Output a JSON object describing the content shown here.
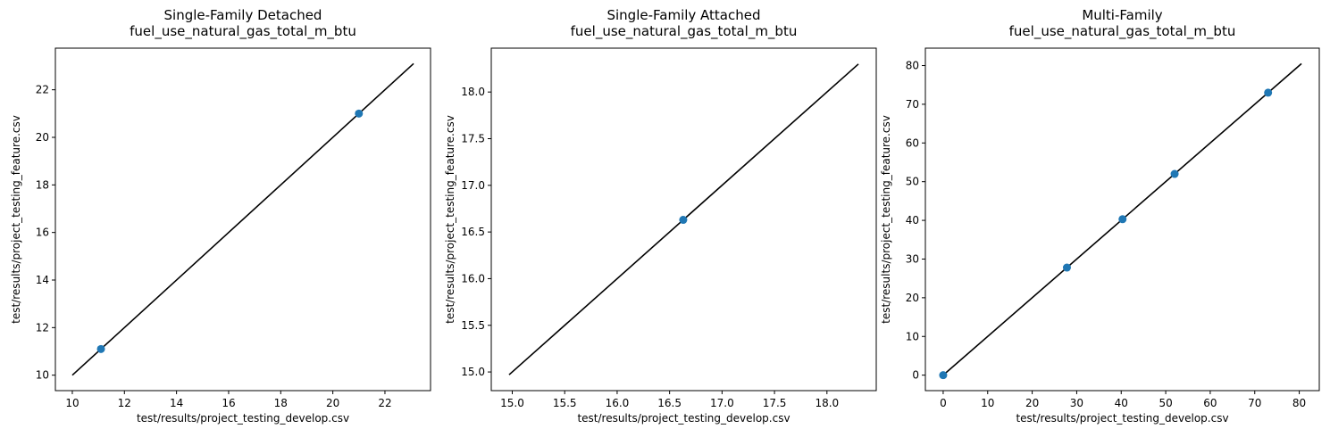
{
  "chart_data": [
    {
      "type": "scatter",
      "title": "Single-Family Detached",
      "subtitle": "fuel_use_natural_gas_total_m_btu",
      "xlabel": "test/results/project_testing_develop.csv",
      "ylabel": "test/results/project_testing_feature.csv",
      "xlim": [
        9.35,
        23.75
      ],
      "ylim": [
        9.35,
        23.75
      ],
      "xticks": [
        10,
        12,
        14,
        16,
        18,
        20,
        22
      ],
      "yticks": [
        10,
        12,
        14,
        16,
        18,
        20,
        22
      ],
      "tick_decimals": 0,
      "points": [
        {
          "x": 11.1,
          "y": 11.1
        },
        {
          "x": 21.0,
          "y": 21.0
        }
      ],
      "identity_line": [
        10.0,
        23.1
      ],
      "grid": false,
      "point_color": "#1f77b4",
      "line_color": "#000000"
    },
    {
      "type": "scatter",
      "title": "Single-Family Attached",
      "subtitle": "fuel_use_natural_gas_total_m_btu",
      "xlabel": "test/results/project_testing_develop.csv",
      "ylabel": "test/results/project_testing_feature.csv",
      "xlim": [
        14.8,
        18.47
      ],
      "ylim": [
        14.8,
        18.47
      ],
      "xticks": [
        15.0,
        15.5,
        16.0,
        16.5,
        17.0,
        17.5,
        18.0
      ],
      "yticks": [
        15.0,
        15.5,
        16.0,
        16.5,
        17.0,
        17.5,
        18.0
      ],
      "tick_decimals": 1,
      "points": [
        {
          "x": 16.63,
          "y": 16.63
        }
      ],
      "identity_line": [
        14.97,
        18.3
      ],
      "grid": false,
      "point_color": "#1f77b4",
      "line_color": "#000000"
    },
    {
      "type": "scatter",
      "title": "Multi-Family",
      "subtitle": "fuel_use_natural_gas_total_m_btu",
      "xlabel": "test/results/project_testing_develop.csv",
      "ylabel": "test/results/project_testing_feature.csv",
      "xlim": [
        -4.0,
        84.5
      ],
      "ylim": [
        -4.0,
        84.5
      ],
      "xticks": [
        0,
        10,
        20,
        30,
        40,
        50,
        60,
        70,
        80
      ],
      "yticks": [
        0,
        10,
        20,
        30,
        40,
        50,
        60,
        70,
        80
      ],
      "tick_decimals": 0,
      "points": [
        {
          "x": 0.0,
          "y": 0.0
        },
        {
          "x": 27.8,
          "y": 27.8
        },
        {
          "x": 40.3,
          "y": 40.3
        },
        {
          "x": 52.0,
          "y": 52.0
        },
        {
          "x": 73.0,
          "y": 73.0
        }
      ],
      "identity_line": [
        0.0,
        80.5
      ],
      "grid": false,
      "point_color": "#1f77b4",
      "line_color": "#000000"
    }
  ]
}
